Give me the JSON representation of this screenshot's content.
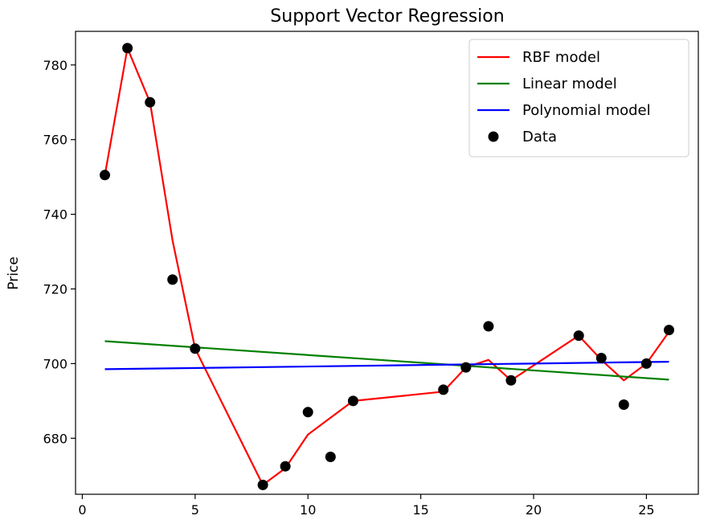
{
  "chart_data": {
    "type": "line",
    "title": "Support Vector Regression",
    "xlabel": "",
    "ylabel": "Price",
    "xlim": [
      -0.3,
      27.3
    ],
    "ylim": [
      665,
      789
    ],
    "xticks": [
      0,
      5,
      10,
      15,
      20,
      25
    ],
    "yticks": [
      680,
      700,
      720,
      740,
      760,
      780
    ],
    "grid": false,
    "legend_position": "top-right",
    "series": [
      {
        "name": "RBF model",
        "kind": "line",
        "color": "#ff0000",
        "x": [
          1,
          2,
          3,
          4,
          5,
          8,
          9,
          10,
          11,
          12,
          16,
          17,
          18,
          19,
          22,
          23,
          24,
          25,
          26
        ],
        "y": [
          750.5,
          784.5,
          770,
          733,
          704,
          667.5,
          672,
          681,
          685.5,
          690,
          692.5,
          699,
          701,
          695.5,
          707.5,
          701,
          695.5,
          700,
          708.5
        ]
      },
      {
        "name": "Linear model",
        "kind": "line",
        "color": "#008000",
        "x": [
          1,
          26
        ],
        "y": [
          706,
          695.7
        ]
      },
      {
        "name": "Polynomial model",
        "kind": "line",
        "color": "#0000ff",
        "x": [
          1,
          26
        ],
        "y": [
          698.5,
          700.5
        ]
      },
      {
        "name": "Data",
        "kind": "scatter",
        "color": "#000000",
        "x": [
          1,
          2,
          3,
          4,
          5,
          8,
          9,
          10,
          11,
          12,
          16,
          17,
          18,
          19,
          22,
          23,
          24,
          25,
          26
        ],
        "y": [
          750.5,
          784.5,
          770,
          722.5,
          704,
          667.5,
          672.5,
          687,
          675,
          690,
          693,
          699,
          710,
          695.5,
          707.5,
          701.5,
          689,
          700,
          709
        ]
      }
    ]
  }
}
